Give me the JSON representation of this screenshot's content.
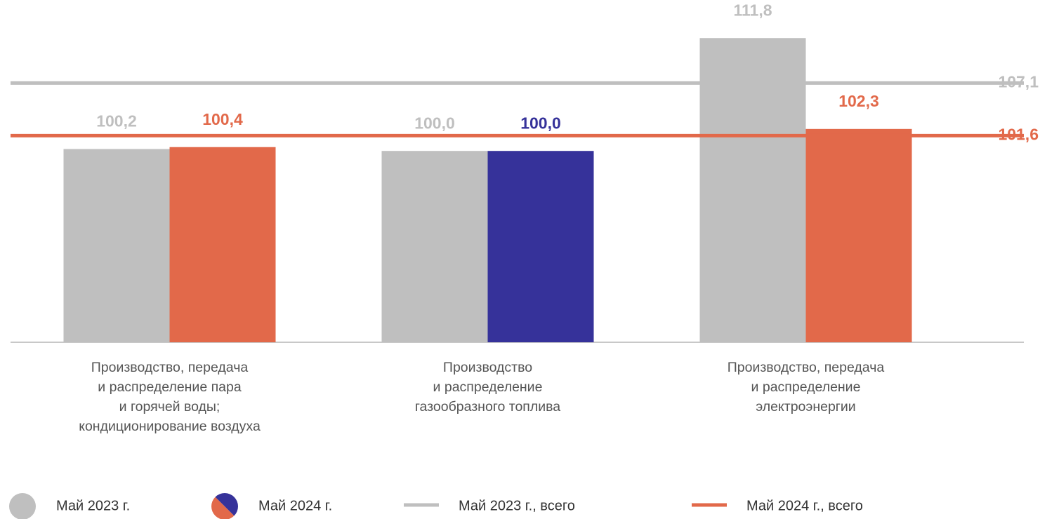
{
  "chart_data": {
    "type": "bar",
    "categories": [
      "Производство, передача\nи распределение пара\nи горячей воды;\nкондиционирование воздуха",
      "Производство\nи распределение\nгазообразного топлива",
      "Производство, передача\nи распределение\nэлектроэнергии"
    ],
    "series": [
      {
        "name": "Май 2023 г.",
        "color": "#bfbfbf",
        "values": [
          100.2,
          100.0,
          111.8
        ],
        "value_labels": [
          "100,2",
          "100,0",
          "111,8"
        ]
      },
      {
        "name": "Май 2024 г.",
        "colors": [
          "#e2694a",
          "#36329a",
          "#e2694a"
        ],
        "values": [
          100.4,
          100.0,
          102.3
        ],
        "value_labels": [
          "100,4",
          "100,0",
          "102,3"
        ]
      }
    ],
    "lines": [
      {
        "name": "Май 2023 г., всего",
        "color": "#bfbfbf",
        "value": 107.1,
        "value_label": "107,1"
      },
      {
        "name": "Май 2024 г., всего",
        "color": "#e2694a",
        "value": 101.6,
        "value_label": "101,6"
      }
    ],
    "ylim": [
      80,
      115
    ]
  }
}
